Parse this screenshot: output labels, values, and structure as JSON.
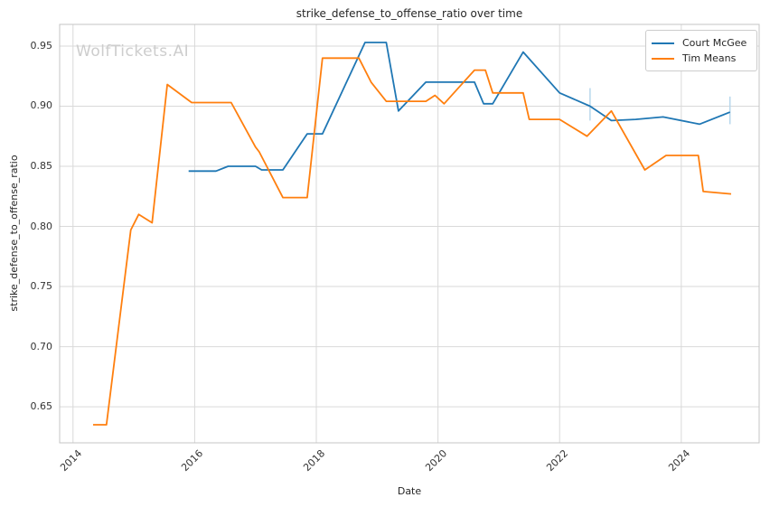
{
  "chart_data": {
    "type": "line",
    "title": "strike_defense_to_offense_ratio over time",
    "xlabel": "Date",
    "ylabel": "strike_defense_to_offense_ratio",
    "watermark": "WolfTickets.AI",
    "grid": true,
    "legend_position": "upper right",
    "xlim": [
      2013.78,
      2025.28
    ],
    "ylim": [
      0.62,
      0.968
    ],
    "x_ticks": [
      2014,
      2016,
      2018,
      2020,
      2022,
      2024
    ],
    "x_tick_labels": [
      "2014",
      "2016",
      "2018",
      "2020",
      "2022",
      "2024"
    ],
    "y_ticks": [
      0.65,
      0.7,
      0.75,
      0.8,
      0.85,
      0.9,
      0.95
    ],
    "y_tick_labels": [
      "0.65",
      "0.70",
      "0.75",
      "0.80",
      "0.85",
      "0.90",
      "0.95"
    ],
    "series": [
      {
        "name": "Court McGee",
        "color": "#1f77b4",
        "points": [
          [
            2015.9,
            0.846
          ],
          [
            2016.35,
            0.846
          ],
          [
            2016.55,
            0.85
          ],
          [
            2017.0,
            0.85
          ],
          [
            2017.1,
            0.847
          ],
          [
            2017.45,
            0.847
          ],
          [
            2017.85,
            0.877
          ],
          [
            2018.1,
            0.877
          ],
          [
            2018.8,
            0.953
          ],
          [
            2019.15,
            0.953
          ],
          [
            2019.35,
            0.896
          ],
          [
            2019.8,
            0.92
          ],
          [
            2020.6,
            0.92
          ],
          [
            2020.75,
            0.902
          ],
          [
            2020.9,
            0.902
          ],
          [
            2021.4,
            0.945
          ],
          [
            2022.0,
            0.911
          ],
          [
            2022.5,
            0.9
          ],
          [
            2022.85,
            0.888
          ],
          [
            2023.25,
            0.889
          ],
          [
            2023.7,
            0.891
          ],
          [
            2024.3,
            0.885
          ],
          [
            2024.8,
            0.895
          ]
        ]
      },
      {
        "name": "Tim Means",
        "color": "#ff7f0e",
        "points": [
          [
            2014.33,
            0.635
          ],
          [
            2014.55,
            0.635
          ],
          [
            2014.95,
            0.797
          ],
          [
            2015.08,
            0.81
          ],
          [
            2015.3,
            0.803
          ],
          [
            2015.55,
            0.918
          ],
          [
            2015.95,
            0.903
          ],
          [
            2016.6,
            0.903
          ],
          [
            2017.0,
            0.866
          ],
          [
            2017.06,
            0.862
          ],
          [
            2017.45,
            0.824
          ],
          [
            2017.85,
            0.824
          ],
          [
            2018.1,
            0.94
          ],
          [
            2018.7,
            0.94
          ],
          [
            2018.9,
            0.92
          ],
          [
            2019.15,
            0.904
          ],
          [
            2019.8,
            0.904
          ],
          [
            2019.95,
            0.909
          ],
          [
            2020.1,
            0.902
          ],
          [
            2020.6,
            0.93
          ],
          [
            2020.78,
            0.93
          ],
          [
            2020.9,
            0.911
          ],
          [
            2021.4,
            0.911
          ],
          [
            2021.5,
            0.889
          ],
          [
            2022.0,
            0.889
          ],
          [
            2022.45,
            0.875
          ],
          [
            2022.85,
            0.896
          ],
          [
            2023.4,
            0.847
          ],
          [
            2023.75,
            0.859
          ],
          [
            2024.28,
            0.859
          ],
          [
            2024.36,
            0.829
          ],
          [
            2024.82,
            0.827
          ]
        ]
      }
    ],
    "error_markers": [
      {
        "x": 2022.5,
        "y_low": 0.888,
        "y_high": 0.915,
        "color": "#b7d7ec"
      },
      {
        "x": 2024.8,
        "y_low": 0.885,
        "y_high": 0.908,
        "color": "#b7d7ec"
      }
    ],
    "colors": {
      "grid": "#d9d9d9",
      "frame": "#c4c4c4",
      "text": "#262626",
      "watermark": "#cdcdcd"
    }
  }
}
